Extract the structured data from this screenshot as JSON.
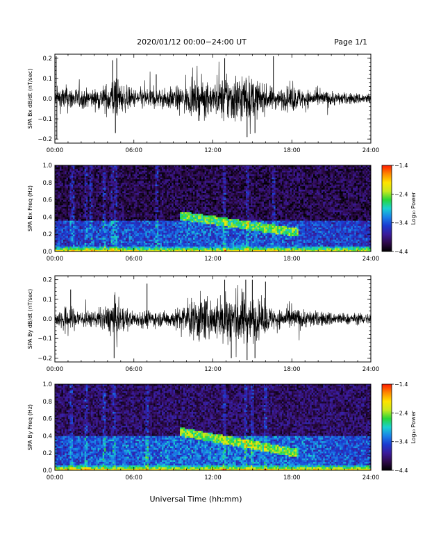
{
  "header": {
    "title": "2020/01/12  00:00−24:00 UT",
    "page": "Page 1/1"
  },
  "footer": {
    "xlabel": "Universal Time (hh:mm)"
  },
  "colors": {
    "trace": "#000000",
    "colormap": [
      "#000000",
      "#2e0a4a",
      "#3a1a9a",
      "#1a3acf",
      "#1a82e8",
      "#19d0d0",
      "#27d63a",
      "#c8e81e",
      "#ffe300",
      "#ff8a00",
      "#ff1a00"
    ]
  },
  "chart_data": [
    {
      "type": "line",
      "name": "panel-bx-timeseries",
      "ylabel": "SPA Bx dB/dt (nT/sec)",
      "xlim": [
        0,
        24
      ],
      "ylim": [
        -0.22,
        0.22
      ],
      "x_tick_labels": [
        "00:00",
        "06:00",
        "12:00",
        "18:00",
        "24:00"
      ],
      "x_ticks_hours": [
        0,
        6,
        12,
        18,
        24
      ],
      "y_ticks": [
        -0.2,
        -0.1,
        0.0,
        0.1,
        0.2
      ],
      "y_tick_labels": [
        "−0.2",
        "−0.1",
        "0.0",
        "0.1",
        "0.2"
      ],
      "envelope": {
        "hours": [
          0,
          1,
          2,
          3,
          4,
          4.5,
          5,
          6,
          7,
          8,
          9,
          10,
          11,
          12,
          13,
          14,
          15,
          16,
          17,
          18,
          19,
          20,
          21,
          22,
          23,
          24
        ],
        "amplitude": [
          0.06,
          0.07,
          0.05,
          0.05,
          0.08,
          0.12,
          0.08,
          0.05,
          0.06,
          0.05,
          0.06,
          0.07,
          0.1,
          0.08,
          0.12,
          0.14,
          0.11,
          0.07,
          0.05,
          0.07,
          0.05,
          0.04,
          0.04,
          0.03,
          0.03,
          0.03
        ]
      },
      "spikes": [
        {
          "hour": 0.1,
          "value": 0.21
        },
        {
          "hour": 0.15,
          "value": -0.2
        },
        {
          "hour": 4.4,
          "value": 0.19
        },
        {
          "hour": 4.6,
          "value": -0.17
        },
        {
          "hour": 4.7,
          "value": 0.2
        },
        {
          "hour": 7.7,
          "value": 0.12
        },
        {
          "hour": 12.9,
          "value": 0.2
        },
        {
          "hour": 14.6,
          "value": -0.19
        },
        {
          "hour": 16.6,
          "value": 0.21
        },
        {
          "hour": 15.2,
          "value": -0.17
        }
      ]
    },
    {
      "type": "heatmap",
      "name": "panel-bx-spectrogram",
      "ylabel": "SPA Bx Freq (Hz)",
      "xlim": [
        0,
        24
      ],
      "ylim": [
        0,
        1.0
      ],
      "x_tick_labels": [
        "00:00",
        "06:00",
        "12:00",
        "18:00",
        "24:00"
      ],
      "x_ticks_hours": [
        0,
        6,
        12,
        18,
        24
      ],
      "y_ticks": [
        0.0,
        0.2,
        0.4,
        0.6,
        0.8,
        1.0
      ],
      "y_tick_labels": [
        "0.0",
        "0.2",
        "0.4",
        "0.6",
        "0.8",
        "1.0"
      ],
      "colorbar": {
        "label": "Log₁₀ Power",
        "range": [
          -4.4,
          -1.4
        ],
        "ticks": [
          -1.4,
          -2.4,
          -3.4,
          -4.4
        ],
        "tick_labels": [
          "−1.4",
          "−2.4",
          "−3.4",
          "−4.4"
        ]
      },
      "features": {
        "background_log_power": -4.1,
        "low_frequency_log_power": -2.0,
        "enhanced_band": {
          "hour_start": 0,
          "hour_end": 24,
          "freq_low": 0.05,
          "freq_high": 0.35,
          "log_power": -3.3
        },
        "pc_structure": {
          "hour_start": 9.5,
          "hour_end": 18.5,
          "freq_start": 0.42,
          "freq_end": 0.22,
          "log_power": -2.6
        },
        "striations_hours": [
          1.2,
          1.4,
          2.4,
          2.7,
          3.8,
          4.4,
          4.6,
          7.7,
          12.9,
          14.6,
          16.6
        ]
      }
    },
    {
      "type": "line",
      "name": "panel-by-timeseries",
      "ylabel": "SPA By dB/dt (nT/sec)",
      "xlim": [
        0,
        24
      ],
      "ylim": [
        -0.22,
        0.22
      ],
      "x_tick_labels": [
        "00:00",
        "06:00",
        "12:00",
        "18:00",
        "24:00"
      ],
      "x_ticks_hours": [
        0,
        6,
        12,
        18,
        24
      ],
      "y_ticks": [
        -0.2,
        -0.1,
        0.0,
        0.1,
        0.2
      ],
      "y_tick_labels": [
        "−0.2",
        "−0.1",
        "0.0",
        "0.1",
        "0.2"
      ],
      "envelope": {
        "hours": [
          0,
          1,
          2,
          3,
          4,
          4.5,
          5,
          6,
          7,
          8,
          9,
          10,
          11,
          12,
          13,
          14,
          15,
          16,
          17,
          18,
          19,
          20,
          21,
          22,
          23,
          24
        ],
        "amplitude": [
          0.04,
          0.07,
          0.05,
          0.04,
          0.07,
          0.12,
          0.07,
          0.04,
          0.05,
          0.04,
          0.05,
          0.08,
          0.13,
          0.1,
          0.15,
          0.16,
          0.12,
          0.08,
          0.05,
          0.06,
          0.05,
          0.04,
          0.04,
          0.03,
          0.03,
          0.03
        ]
      },
      "spikes": [
        {
          "hour": 1.2,
          "value": 0.15
        },
        {
          "hour": 4.5,
          "value": -0.2
        },
        {
          "hour": 7.0,
          "value": 0.18
        },
        {
          "hour": 12.9,
          "value": 0.2
        },
        {
          "hour": 13.4,
          "value": -0.2
        },
        {
          "hour": 14.5,
          "value": 0.2
        },
        {
          "hour": 14.6,
          "value": -0.21
        },
        {
          "hour": 15.0,
          "value": 0.2
        },
        {
          "hour": 15.2,
          "value": -0.2
        },
        {
          "hour": 16.0,
          "value": 0.19
        }
      ]
    },
    {
      "type": "heatmap",
      "name": "panel-by-spectrogram",
      "ylabel": "SPA By Freq (Hz)",
      "xlim": [
        0,
        24
      ],
      "ylim": [
        0,
        1.0
      ],
      "x_tick_labels": [
        "00:00",
        "06:00",
        "12:00",
        "18:00",
        "24:00"
      ],
      "x_ticks_hours": [
        0,
        6,
        12,
        18,
        24
      ],
      "y_ticks": [
        0.0,
        0.2,
        0.4,
        0.6,
        0.8,
        1.0
      ],
      "y_tick_labels": [
        "0.0",
        "0.2",
        "0.4",
        "0.6",
        "0.8",
        "1.0"
      ],
      "colorbar": {
        "label": "Log₁₀ Power",
        "range": [
          -4.4,
          -1.4
        ],
        "ticks": [
          -1.4,
          -2.4,
          -3.4,
          -4.4
        ],
        "tick_labels": [
          "−1.4",
          "−2.4",
          "−3.4",
          "−4.4"
        ]
      },
      "features": {
        "background_log_power": -4.0,
        "low_frequency_log_power": -1.9,
        "enhanced_band": {
          "hour_start": 0,
          "hour_end": 24,
          "freq_low": 0.05,
          "freq_high": 0.4,
          "log_power": -3.2
        },
        "pc_structure": {
          "hour_start": 9.5,
          "hour_end": 18.5,
          "freq_start": 0.45,
          "freq_end": 0.2,
          "log_power": -2.5
        },
        "striations_hours": [
          1.2,
          2.4,
          3.8,
          4.5,
          7.0,
          12.9,
          14.5,
          15.0,
          16.0
        ]
      }
    }
  ]
}
